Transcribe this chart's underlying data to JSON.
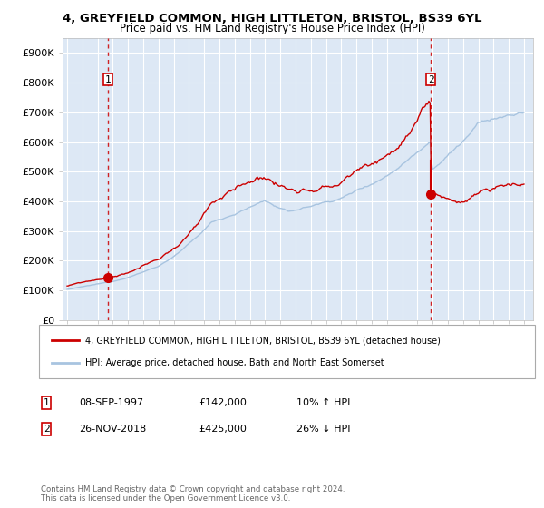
{
  "title1": "4, GREYFIELD COMMON, HIGH LITTLETON, BRISTOL, BS39 6YL",
  "title2": "Price paid vs. HM Land Registry's House Price Index (HPI)",
  "legend_line1": "4, GREYFIELD COMMON, HIGH LITTLETON, BRISTOL, BS39 6YL (detached house)",
  "legend_line2": "HPI: Average price, detached house, Bath and North East Somerset",
  "transaction1_label": "1",
  "transaction1_date": "08-SEP-1997",
  "transaction1_price": "£142,000",
  "transaction1_hpi": "10% ↑ HPI",
  "transaction2_label": "2",
  "transaction2_date": "26-NOV-2018",
  "transaction2_price": "£425,000",
  "transaction2_hpi": "26% ↓ HPI",
  "footer": "Contains HM Land Registry data © Crown copyright and database right 2024.\nThis data is licensed under the Open Government Licence v3.0.",
  "hpi_color": "#a8c4e0",
  "price_color": "#cc0000",
  "dot_color": "#cc0000",
  "vline_color": "#cc0000",
  "bg_color": "#dde8f5",
  "grid_color": "#ffffff",
  "ylim": [
    0,
    950000
  ],
  "yticks": [
    0,
    100000,
    200000,
    300000,
    400000,
    500000,
    600000,
    700000,
    800000,
    900000
  ],
  "ytick_labels": [
    "£0",
    "£100K",
    "£200K",
    "£300K",
    "£400K",
    "£500K",
    "£600K",
    "£700K",
    "£800K",
    "£900K"
  ],
  "transaction1_x": 1997.67,
  "transaction2_x": 2018.89,
  "transaction1_y": 142000,
  "transaction2_y": 425000,
  "transaction1_hpi_y": 128000,
  "transaction2_hpi_y": 537000,
  "xmin": 1994.7,
  "xmax": 2025.6
}
